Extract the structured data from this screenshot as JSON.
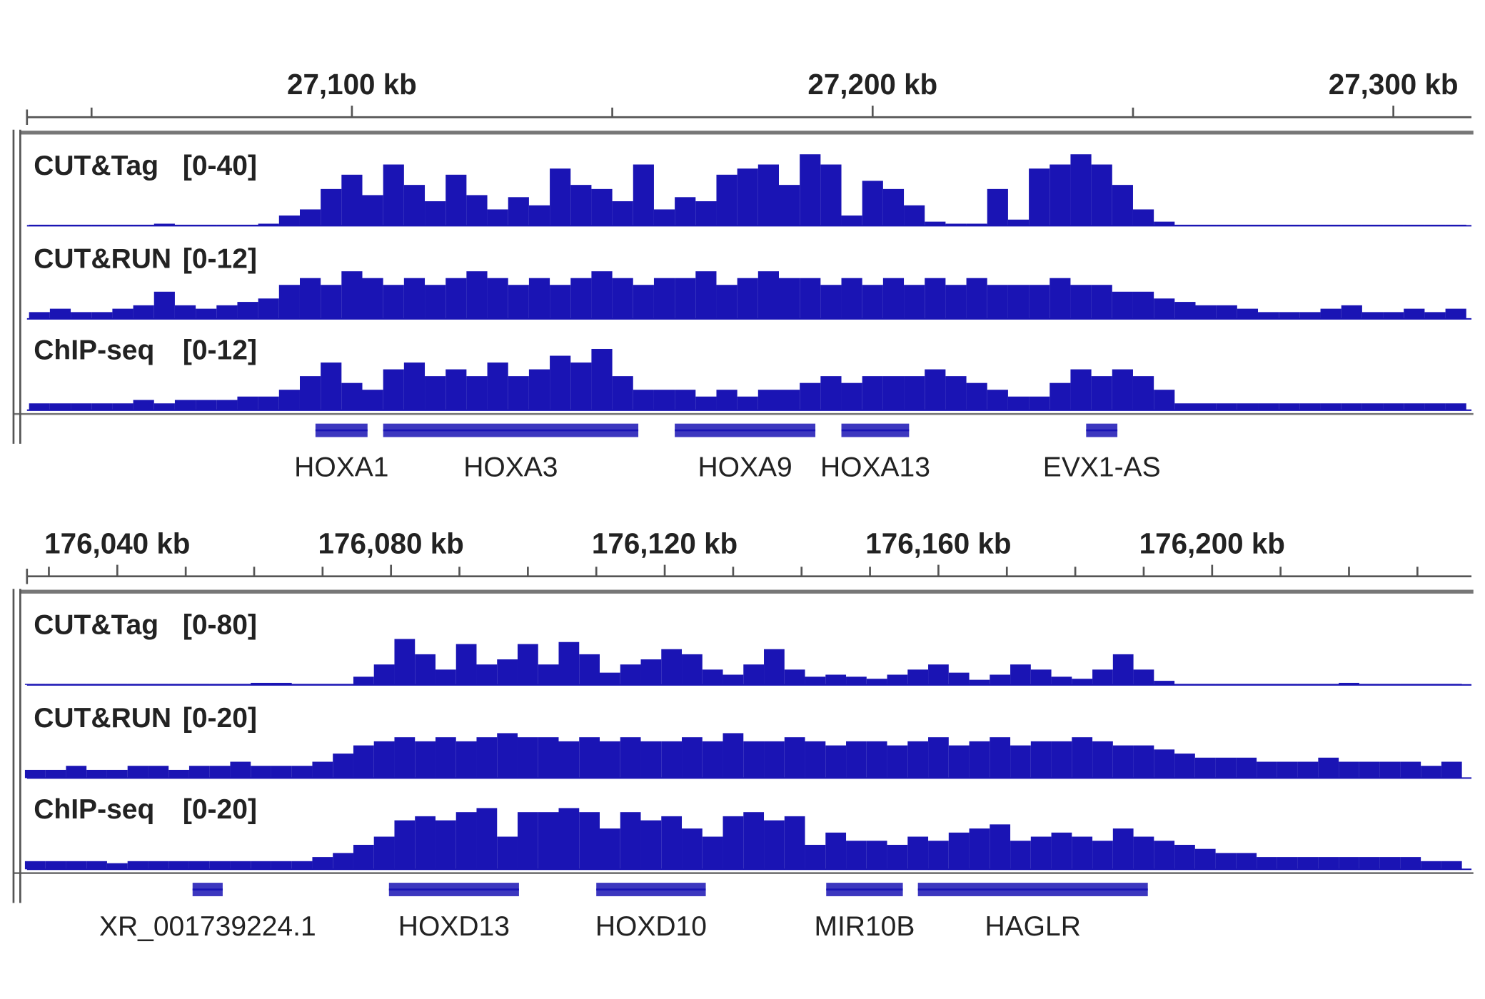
{
  "chart_data": [
    {
      "type": "track",
      "xlim": [
        27037.6,
        27315
      ],
      "xticks": [
        {
          "value": 27100,
          "label": "27,100 kb"
        },
        {
          "value": 27200,
          "label": "27,200 kb"
        },
        {
          "value": 27300,
          "label": "27,300 kb"
        }
      ],
      "minor_xticks": [
        27050,
        27150,
        27250
      ],
      "x": [
        27040,
        27044,
        27048,
        27052,
        27056,
        27060,
        27064,
        27068,
        27072,
        27076,
        27080,
        27084,
        27088,
        27092,
        27096,
        27100,
        27104,
        27108,
        27112,
        27116,
        27120,
        27124,
        27128,
        27132,
        27136,
        27140,
        27144,
        27148,
        27152,
        27156,
        27160,
        27164,
        27168,
        27172,
        27176,
        27180,
        27184,
        27188,
        27192,
        27196,
        27200,
        27204,
        27208,
        27212,
        27216,
        27220,
        27224,
        27228,
        27232,
        27236,
        27240,
        27244,
        27248,
        27252,
        27256,
        27260,
        27264,
        27268,
        27272,
        27276,
        27280,
        27284,
        27288,
        27292,
        27296,
        27300,
        27304,
        27308,
        27312
      ],
      "series": [
        {
          "name": "CUT&Tag",
          "range_label": "[0-40]",
          "ylim": [
            0,
            40
          ],
          "color": "#1a14b4",
          "values": [
            0.5,
            0.5,
            0.5,
            0.5,
            0.5,
            0.5,
            1,
            0.5,
            0.5,
            0.5,
            0.5,
            1,
            5,
            8,
            18,
            25,
            15,
            30,
            20,
            12,
            25,
            15,
            8,
            14,
            10,
            28,
            20,
            18,
            12,
            30,
            8,
            14,
            12,
            25,
            28,
            30,
            20,
            35,
            30,
            5,
            22,
            18,
            10,
            2,
            1,
            1,
            18,
            3,
            28,
            30,
            35,
            30,
            20,
            8,
            2,
            0.5,
            0.5,
            0.5,
            0.5,
            0.5,
            0.5,
            0.5,
            0.5,
            0.5,
            0.5,
            0.5,
            0.5,
            0.5,
            0.5
          ]
        },
        {
          "name": "CUT&RUN",
          "range_label": "[0-12]",
          "ylim": [
            0,
            12
          ],
          "color": "#1a14b4",
          "values": [
            1,
            1.5,
            1,
            1,
            1.5,
            2,
            4,
            2,
            1.5,
            2,
            2.5,
            3,
            5,
            6,
            5,
            7,
            6,
            5,
            6,
            5,
            6,
            7,
            6,
            5,
            6,
            5,
            6,
            7,
            6,
            5,
            6,
            6,
            7,
            5,
            6,
            7,
            6,
            6,
            5,
            6,
            5,
            6,
            5,
            6,
            5,
            6,
            5,
            5,
            5,
            6,
            5,
            5,
            4,
            4,
            3,
            2.5,
            2,
            2,
            1.5,
            1,
            1,
            1,
            1.5,
            2,
            1,
            1,
            1.5,
            1,
            1.5
          ]
        },
        {
          "name": "ChIP-seq",
          "range_label": "[0-12]",
          "ylim": [
            0,
            12
          ],
          "color": "#1a14b4",
          "values": [
            1,
            1,
            1,
            1,
            1,
            1.5,
            1,
            1.5,
            1.5,
            1.5,
            2,
            2,
            3,
            5,
            7,
            4,
            3,
            6,
            7,
            5,
            6,
            5,
            7,
            5,
            6,
            8,
            7,
            9,
            5,
            3,
            3,
            3,
            2,
            3,
            2,
            3,
            3,
            4,
            5,
            4,
            5,
            5,
            5,
            6,
            5,
            4,
            3,
            2,
            2,
            4,
            6,
            5,
            6,
            5,
            3,
            1,
            1,
            1,
            1,
            1,
            1,
            1,
            1,
            1,
            1,
            1,
            1,
            1,
            1
          ]
        }
      ],
      "genes": [
        {
          "label": "HOXA1",
          "start": 27093,
          "end": 27103
        },
        {
          "label": "HOXA3",
          "start": 27106,
          "end": 27155
        },
        {
          "label": "HOXA9",
          "start": 27162,
          "end": 27189
        },
        {
          "label": "HOXA13",
          "start": 27194,
          "end": 27207
        },
        {
          "label": "EVX1-AS",
          "start": 27241,
          "end": 27247
        }
      ]
    },
    {
      "type": "track",
      "xlim": [
        176026.8,
        176237.9
      ],
      "xticks": [
        {
          "value": 176040,
          "label": "176,040 kb"
        },
        {
          "value": 176080,
          "label": "176,080 kb"
        },
        {
          "value": 176120,
          "label": "176,120 kb"
        },
        {
          "value": 176160,
          "label": "176,160 kb"
        },
        {
          "value": 176200,
          "label": "176,200 kb"
        }
      ],
      "minor_xticks": [
        176030,
        176050,
        176060,
        176070,
        176090,
        176100,
        176110,
        176130,
        176140,
        176150,
        176170,
        176180,
        176190,
        176210,
        176220,
        176230
      ],
      "x": [
        176028,
        176031,
        176034,
        176037,
        176040,
        176043,
        176046,
        176049,
        176052,
        176055,
        176058,
        176061,
        176064,
        176067,
        176070,
        176073,
        176076,
        176079,
        176082,
        176085,
        176088,
        176091,
        176094,
        176097,
        176100,
        176103,
        176106,
        176109,
        176112,
        176115,
        176118,
        176121,
        176124,
        176127,
        176130,
        176133,
        176136,
        176139,
        176142,
        176145,
        176148,
        176151,
        176154,
        176157,
        176160,
        176163,
        176166,
        176169,
        176172,
        176175,
        176178,
        176181,
        176184,
        176187,
        176190,
        176193,
        176196,
        176199,
        176202,
        176205,
        176208,
        176211,
        176214,
        176217,
        176220,
        176223,
        176226,
        176229,
        176232,
        176235
      ],
      "series": [
        {
          "name": "CUT&Tag",
          "range_label": "[0-80]",
          "ylim": [
            0,
            80
          ],
          "color": "#1a14b4",
          "values": [
            1,
            1,
            1,
            1,
            1,
            1,
            1,
            1,
            1,
            1,
            1,
            2,
            2,
            1,
            1,
            1,
            8,
            20,
            45,
            30,
            15,
            40,
            20,
            25,
            40,
            20,
            42,
            30,
            12,
            20,
            25,
            35,
            30,
            15,
            10,
            20,
            35,
            15,
            8,
            10,
            8,
            6,
            10,
            15,
            20,
            12,
            5,
            10,
            20,
            15,
            8,
            6,
            15,
            30,
            15,
            4,
            1,
            1,
            1,
            1,
            1,
            1,
            1,
            1,
            2,
            1,
            1,
            1,
            1,
            1
          ]
        },
        {
          "name": "CUT&RUN",
          "range_label": "[0-20]",
          "ylim": [
            0,
            20
          ],
          "color": "#1a14b4",
          "values": [
            2,
            2,
            3,
            2,
            2,
            3,
            3,
            2,
            3,
            3,
            4,
            3,
            3,
            3,
            4,
            6,
            8,
            9,
            10,
            9,
            10,
            9,
            10,
            11,
            10,
            10,
            9,
            10,
            9,
            10,
            9,
            9,
            10,
            9,
            11,
            9,
            9,
            10,
            9,
            8,
            9,
            9,
            8,
            9,
            10,
            8,
            9,
            10,
            8,
            9,
            9,
            10,
            9,
            8,
            8,
            7,
            6,
            5,
            5,
            5,
            4,
            4,
            4,
            5,
            4,
            4,
            4,
            4,
            3,
            4
          ]
        },
        {
          "name": "ChIP-seq",
          "range_label": "[0-20]",
          "ylim": [
            0,
            20
          ],
          "color": "#1a14b4",
          "values": [
            2,
            2,
            2,
            2,
            1.5,
            2,
            2,
            2,
            2,
            2,
            2,
            2,
            2,
            2,
            3,
            4,
            6,
            8,
            12,
            13,
            12,
            14,
            15,
            8,
            14,
            14,
            15,
            14,
            10,
            14,
            12,
            13,
            10,
            8,
            13,
            14,
            12,
            13,
            6,
            9,
            7,
            7,
            6,
            8,
            7,
            9,
            10,
            11,
            7,
            8,
            9,
            8,
            7,
            10,
            8,
            7,
            6,
            5,
            4,
            4,
            3,
            3,
            3,
            3,
            3,
            3,
            3,
            3,
            2,
            2
          ]
        }
      ],
      "genes": [
        {
          "label": "XR_001739224.1",
          "start": 176051,
          "end": 176055.4
        },
        {
          "label": "HOXD13",
          "start": 176079.7,
          "end": 176098.7
        },
        {
          "label": "HOXD10",
          "start": 176110,
          "end": 176126
        },
        {
          "label": "MIR10B",
          "start": 176143.6,
          "end": 176154.8
        },
        {
          "label": "HAGLR",
          "start": 176157,
          "end": 176190.6
        }
      ]
    }
  ]
}
